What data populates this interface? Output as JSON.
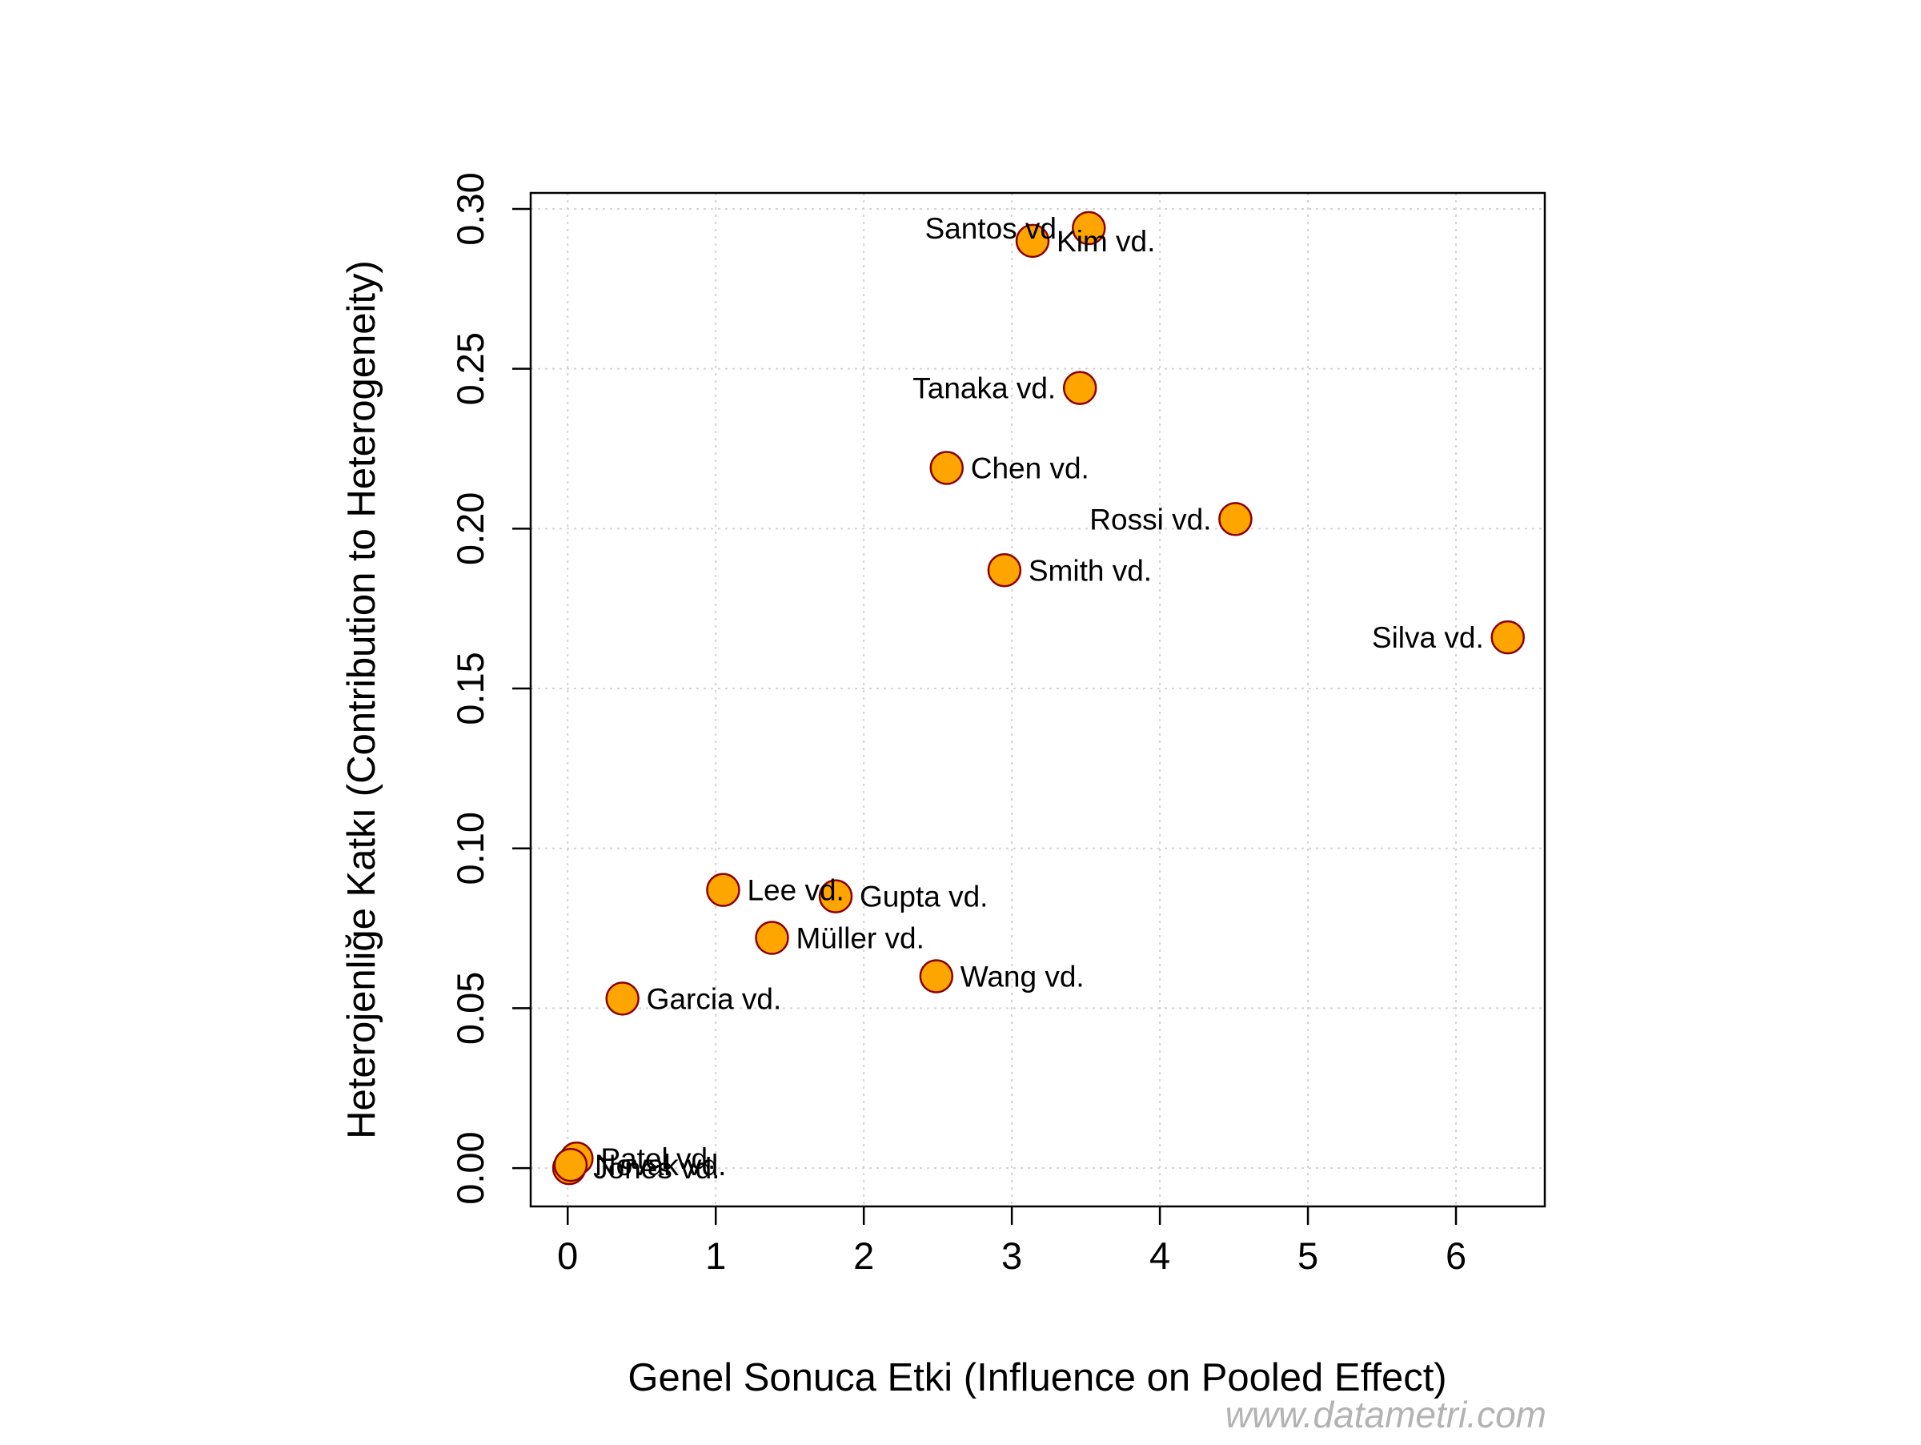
{
  "chart_data": {
    "type": "scatter",
    "xlabel": "Genel Sonuca Etki (Influence on Pooled Effect)",
    "ylabel": "Heterojenliğe Katkı (Contribution to Heterogeneity)",
    "xlim": [
      -0.25,
      6.6
    ],
    "ylim": [
      -0.012,
      0.305
    ],
    "x_ticks": [
      0,
      1,
      2,
      3,
      4,
      5,
      6
    ],
    "x_tick_labels": [
      "0",
      "1",
      "2",
      "3",
      "4",
      "5",
      "6"
    ],
    "y_ticks": [
      0.0,
      0.05,
      0.1,
      0.15,
      0.2,
      0.25,
      0.3
    ],
    "y_tick_labels": [
      "0.00",
      "0.05",
      "0.10",
      "0.15",
      "0.20",
      "0.25",
      "0.30"
    ],
    "grid": true,
    "marker_fill": "#FFA500",
    "marker_edge": "#8B0000",
    "points": [
      {
        "label": "Santos vd.",
        "x": 3.52,
        "y": 0.294,
        "label_side": "left"
      },
      {
        "label": "Kim vd.",
        "x": 3.14,
        "y": 0.29,
        "label_side": "right"
      },
      {
        "label": "Tanaka vd.",
        "x": 3.46,
        "y": 0.244,
        "label_side": "left"
      },
      {
        "label": "Chen vd.",
        "x": 2.56,
        "y": 0.219,
        "label_side": "right"
      },
      {
        "label": "Rossi vd.",
        "x": 4.51,
        "y": 0.203,
        "label_side": "left"
      },
      {
        "label": "Smith vd.",
        "x": 2.95,
        "y": 0.187,
        "label_side": "right"
      },
      {
        "label": "Silva vd.",
        "x": 6.35,
        "y": 0.166,
        "label_side": "left"
      },
      {
        "label": "Lee vd.",
        "x": 1.05,
        "y": 0.087,
        "label_side": "right"
      },
      {
        "label": "Gupta vd.",
        "x": 1.81,
        "y": 0.085,
        "label_side": "right"
      },
      {
        "label": "Müller vd.",
        "x": 1.38,
        "y": 0.072,
        "label_side": "right"
      },
      {
        "label": "Wang vd.",
        "x": 2.49,
        "y": 0.06,
        "label_side": "right"
      },
      {
        "label": "Garcia vd.",
        "x": 0.37,
        "y": 0.053,
        "label_side": "right"
      },
      {
        "label": "Patel vd.",
        "x": 0.06,
        "y": 0.003,
        "label_side": "right"
      },
      {
        "label": "Jones vd.",
        "x": 0.01,
        "y": 0.0,
        "label_side": "right"
      },
      {
        "label": "Novak vd.",
        "x": 0.02,
        "y": 0.001,
        "label_side": "right"
      }
    ]
  },
  "watermark": "www.datametri.com"
}
